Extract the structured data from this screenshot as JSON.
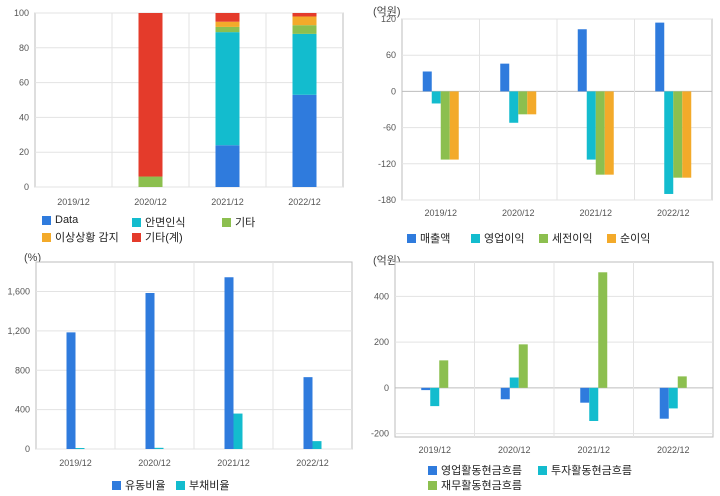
{
  "colors": {
    "blue": "#2f7bdd",
    "cyan": "#13bcce",
    "green": "#8cbf4f",
    "orange": "#f3aa2a",
    "red": "#e43b2b",
    "grid": "#e3e3e3",
    "axis": "#bdbdbd",
    "plot_bg": "#ffffff"
  },
  "chart_data": [
    {
      "type": "bar",
      "stacked": true,
      "unit": "",
      "categories": [
        "2019/12",
        "2020/12",
        "2021/12",
        "2022/12"
      ],
      "series": [
        {
          "name": "Data",
          "color": "#2f7bdd",
          "values": [
            0,
            0,
            24,
            53
          ]
        },
        {
          "name": "안면인식",
          "color": "#13bcce",
          "values": [
            0,
            0,
            65,
            35
          ]
        },
        {
          "name": "기타",
          "color": "#8cbf4f",
          "values": [
            0,
            6,
            3,
            5
          ]
        },
        {
          "name": "이상상황 감지",
          "color": "#f3aa2a",
          "values": [
            0,
            0,
            3,
            5
          ]
        },
        {
          "name": "기타(계)",
          "color": "#e43b2b",
          "values": [
            0,
            94,
            5,
            2
          ]
        }
      ],
      "ylim": [
        0,
        100
      ],
      "yticks": [
        0,
        20,
        40,
        60,
        80,
        100
      ],
      "ytick_labels": [
        "0",
        "20",
        "40",
        "60",
        "80",
        "100"
      ],
      "grid": true,
      "legend": "bottom"
    },
    {
      "type": "bar",
      "unit": "(억원)",
      "categories": [
        "2019/12",
        "2020/12",
        "2021/12",
        "2022/12"
      ],
      "series": [
        {
          "name": "매출액",
          "color": "#2f7bdd",
          "values": [
            33,
            46,
            103,
            114
          ]
        },
        {
          "name": "영업이익",
          "color": "#13bcce",
          "values": [
            -20,
            -52,
            -113,
            -170
          ]
        },
        {
          "name": "세전이익",
          "color": "#8cbf4f",
          "values": [
            -113,
            -38,
            -138,
            -143
          ]
        },
        {
          "name": "순이익",
          "color": "#f3aa2a",
          "values": [
            -113,
            -38,
            -138,
            -143
          ]
        }
      ],
      "ylim": [
        -180,
        120
      ],
      "yticks": [
        -180,
        -120,
        -60,
        0,
        60,
        120
      ],
      "ytick_labels": [
        "-180",
        "-120",
        "-60",
        "0",
        "60",
        "120"
      ],
      "grid": true,
      "legend": "bottom"
    },
    {
      "type": "bar",
      "unit": "(%)",
      "categories": [
        "2019/12",
        "2020/12",
        "2021/12",
        "2022/12"
      ],
      "series": [
        {
          "name": "유동비율",
          "color": "#2f7bdd",
          "values": [
            1185,
            1585,
            1745,
            730
          ]
        },
        {
          "name": "부채비율",
          "color": "#13bcce",
          "values": [
            10,
            12,
            360,
            80
          ]
        }
      ],
      "ylim": [
        0,
        1900
      ],
      "yticks": [
        0,
        400,
        800,
        1200,
        1600
      ],
      "ytick_labels": [
        "0",
        "400",
        "800",
        "1,200",
        "1,600"
      ],
      "grid": true,
      "legend": "bottom"
    },
    {
      "type": "bar",
      "unit": "(억원)",
      "categories": [
        "2019/12",
        "2020/12",
        "2021/12",
        "2022/12"
      ],
      "series": [
        {
          "name": "영업활동현금흐름",
          "color": "#2f7bdd",
          "values": [
            -10,
            -50,
            -65,
            -135
          ]
        },
        {
          "name": "투자활동현금흐름",
          "color": "#13bcce",
          "values": [
            -80,
            45,
            -145,
            -90
          ]
        },
        {
          "name": "재무활동현금흐름",
          "color": "#8cbf4f",
          "values": [
            120,
            190,
            505,
            50
          ]
        }
      ],
      "ylim": [
        -215,
        550
      ],
      "yticks": [
        -200,
        0,
        200,
        400
      ],
      "ytick_labels": [
        "-200",
        "0",
        "200",
        "400"
      ],
      "grid": true,
      "legend": "bottom"
    }
  ]
}
